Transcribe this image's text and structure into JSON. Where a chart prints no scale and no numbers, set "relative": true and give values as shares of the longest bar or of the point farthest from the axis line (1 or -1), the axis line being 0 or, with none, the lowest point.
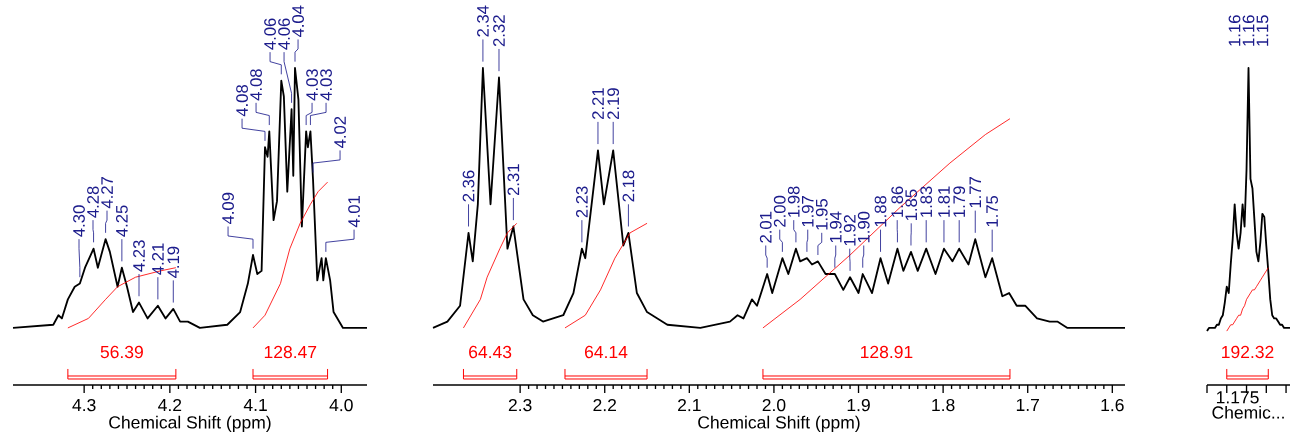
{
  "chart_data": [
    {
      "type": "line",
      "relative": true,
      "xlabel": "Chemical Shift (ppm)",
      "xlim": [
        4.383,
        3.97
      ],
      "xticks": [
        4.3,
        4.2,
        4.1,
        {
          "value": 4.0,
          "label": "4.0"
        }
      ],
      "series": [
        {
          "color": "#000000",
          "x": [
            4.383,
            4.336,
            4.33,
            4.326,
            4.319,
            4.311,
            4.305,
            4.299,
            4.289,
            4.284,
            4.275,
            4.27,
            4.261,
            4.256,
            4.25,
            4.243,
            4.236,
            4.226,
            4.214,
            4.205,
            4.196,
            4.188,
            4.179,
            4.165,
            4.133,
            4.118,
            4.109,
            4.103,
            4.098,
            4.093,
            4.089,
            4.086,
            4.084,
            4.079,
            4.075,
            4.07,
            4.067,
            4.063,
            4.058,
            4.056,
            4.054,
            4.05,
            4.046,
            4.041,
            4.039,
            4.036,
            4.033,
            4.028,
            4.023,
            4.021,
            4.018,
            4.013,
            4.009,
            3.998,
            3.97
          ],
          "values": [
            0.18,
            0.19,
            0.22,
            0.21,
            0.27,
            0.31,
            0.32,
            0.37,
            0.43,
            0.37,
            0.46,
            0.42,
            0.31,
            0.37,
            0.31,
            0.23,
            0.26,
            0.21,
            0.25,
            0.21,
            0.24,
            0.2,
            0.2,
            0.18,
            0.19,
            0.23,
            0.32,
            0.41,
            0.35,
            0.36,
            0.75,
            0.72,
            0.8,
            0.52,
            0.58,
            0.96,
            0.91,
            0.61,
            0.87,
            0.66,
            1.0,
            0.9,
            0.5,
            0.8,
            0.75,
            0.8,
            0.65,
            0.33,
            0.4,
            0.33,
            0.4,
            0.33,
            0.23,
            0.18,
            0.18
          ]
        },
        {
          "color": "#ff0000",
          "x": [
            4.319,
            4.295,
            4.275,
            4.261,
            4.24,
            4.211,
            4.193
          ],
          "values": [
            0.18,
            0.21,
            0.27,
            0.31,
            0.34,
            0.36,
            0.37
          ]
        },
        {
          "color": "#ff0000",
          "x": [
            4.103,
            4.089,
            4.071,
            4.06,
            4.048,
            4.036,
            4.027,
            4.016
          ],
          "values": [
            0.18,
            0.22,
            0.32,
            0.43,
            0.51,
            0.57,
            0.61,
            0.64
          ]
        }
      ],
      "annotations": [
        "56.39",
        "128.47",
        {
          "text": "4.30",
          "x": 4.305,
          "y": 0.32
        },
        {
          "text": "4.28",
          "x": 4.289,
          "y": 0.43
        },
        {
          "text": "4.27",
          "x": 4.275,
          "y": 0.46
        },
        {
          "text": "4.25",
          "x": 4.256,
          "y": 0.37
        },
        {
          "text": "4.23",
          "x": 4.236,
          "y": 0.26
        },
        {
          "text": "4.21",
          "x": 4.214,
          "y": 0.25
        },
        {
          "text": "4.19",
          "x": 4.196,
          "y": 0.24
        },
        {
          "text": "4.09",
          "x": 4.103,
          "y": 0.41
        },
        {
          "text": "4.08",
          "x": 4.089,
          "y": 0.75
        },
        {
          "text": "4.08",
          "x": 4.084,
          "y": 0.8
        },
        {
          "text": "4.06",
          "x": 4.07,
          "y": 0.96
        },
        {
          "text": "4.06",
          "x": 4.058,
          "y": 0.87
        },
        {
          "text": "4.04",
          "x": 4.054,
          "y": 1.0
        },
        {
          "text": "4.03",
          "x": 4.041,
          "y": 0.8
        },
        {
          "text": "4.03",
          "x": 4.036,
          "y": 0.8
        },
        {
          "text": "4.02",
          "x": 4.033,
          "y": 0.65
        },
        {
          "text": "4.01",
          "x": 4.018,
          "y": 0.4
        }
      ]
    },
    {
      "type": "line",
      "relative": true,
      "xlabel": "Chemical Shift (ppm)",
      "xlim": [
        2.403,
        1.585
      ],
      "xticks": [
        2.3,
        2.2,
        2.1,
        {
          "value": 2.0,
          "label": "2.0"
        },
        1.9,
        1.8,
        1.7,
        1.6
      ],
      "series": [
        {
          "color": "#000000",
          "x": [
            2.403,
            2.386,
            2.371,
            2.361,
            2.356,
            2.35,
            2.344,
            2.335,
            2.325,
            2.315,
            2.308,
            2.296,
            2.285,
            2.273,
            2.249,
            2.237,
            2.227,
            2.223,
            2.208,
            2.201,
            2.19,
            2.178,
            2.172,
            2.162,
            2.15,
            2.126,
            2.087,
            2.052,
            2.043,
            2.036,
            2.026,
            2.02,
            2.008,
            2.002,
            1.99,
            1.983,
            1.974,
            1.969,
            1.961,
            1.955,
            1.948,
            1.939,
            1.928,
            1.918,
            1.91,
            1.9,
            1.895,
            1.884,
            1.874,
            1.865,
            1.854,
            1.847,
            1.838,
            1.83,
            1.82,
            1.809,
            1.799,
            1.789,
            1.781,
            1.77,
            1.762,
            1.75,
            1.742,
            1.73,
            1.722,
            1.713,
            1.703,
            1.689,
            1.674,
            1.665,
            1.653,
            1.585
          ],
          "values": [
            0.18,
            0.2,
            0.25,
            0.48,
            0.39,
            0.57,
            1.0,
            0.57,
            0.97,
            0.43,
            0.5,
            0.27,
            0.22,
            0.2,
            0.22,
            0.29,
            0.43,
            0.4,
            0.74,
            0.57,
            0.74,
            0.44,
            0.48,
            0.29,
            0.23,
            0.19,
            0.18,
            0.2,
            0.22,
            0.21,
            0.27,
            0.25,
            0.35,
            0.29,
            0.4,
            0.35,
            0.43,
            0.39,
            0.4,
            0.38,
            0.39,
            0.35,
            0.35,
            0.3,
            0.34,
            0.29,
            0.35,
            0.29,
            0.4,
            0.32,
            0.43,
            0.36,
            0.42,
            0.36,
            0.43,
            0.35,
            0.43,
            0.39,
            0.43,
            0.38,
            0.46,
            0.34,
            0.4,
            0.28,
            0.29,
            0.25,
            0.25,
            0.21,
            0.2,
            0.2,
            0.18,
            0.18
          ]
        },
        {
          "color": "#ff0000",
          "x": [
            2.367,
            2.347,
            2.339,
            2.324,
            2.315,
            2.304
          ],
          "values": [
            0.18,
            0.27,
            0.34,
            0.43,
            0.48,
            0.51
          ]
        },
        {
          "color": "#ff0000",
          "x": [
            2.247,
            2.223,
            2.205,
            2.188,
            2.17,
            2.15
          ],
          "values": [
            0.18,
            0.22,
            0.3,
            0.4,
            0.48,
            0.51
          ]
        },
        {
          "color": "#ff0000",
          "x": [
            2.013,
            1.969,
            1.91,
            1.851,
            1.792,
            1.75,
            1.721
          ],
          "values": [
            0.18,
            0.27,
            0.41,
            0.56,
            0.7,
            0.79,
            0.84
          ]
        }
      ],
      "annotations": [
        "64.43",
        "64.14",
        "128.91",
        {
          "text": "2.36",
          "x": 2.361,
          "y": 0.48
        },
        {
          "text": "2.34",
          "x": 2.344,
          "y": 1.0
        },
        {
          "text": "2.32",
          "x": 2.325,
          "y": 0.97
        },
        {
          "text": "2.31",
          "x": 2.308,
          "y": 0.5
        },
        {
          "text": "2.23",
          "x": 2.227,
          "y": 0.43
        },
        {
          "text": "2.21",
          "x": 2.208,
          "y": 0.74
        },
        {
          "text": "2.19",
          "x": 2.19,
          "y": 0.74
        },
        {
          "text": "2.18",
          "x": 2.172,
          "y": 0.48
        },
        {
          "text": "2.01",
          "x": 2.008,
          "y": 0.35
        },
        {
          "text": "2.00",
          "x": 1.99,
          "y": 0.4
        },
        {
          "text": "1.98",
          "x": 1.974,
          "y": 0.43
        },
        {
          "text": "1.97",
          "x": 1.961,
          "y": 0.4
        },
        {
          "text": "1.95",
          "x": 1.948,
          "y": 0.39
        },
        {
          "text": "1.94",
          "x": 1.928,
          "y": 0.35
        },
        {
          "text": "1.92",
          "x": 1.91,
          "y": 0.34
        },
        {
          "text": "1.90",
          "x": 1.895,
          "y": 0.35
        },
        {
          "text": "1.88",
          "x": 1.874,
          "y": 0.4
        },
        {
          "text": "1.86",
          "x": 1.854,
          "y": 0.43
        },
        {
          "text": "1.85",
          "x": 1.838,
          "y": 0.42
        },
        {
          "text": "1.83",
          "x": 1.82,
          "y": 0.43
        },
        {
          "text": "1.81",
          "x": 1.799,
          "y": 0.43
        },
        {
          "text": "1.79",
          "x": 1.781,
          "y": 0.43
        },
        {
          "text": "1.77",
          "x": 1.762,
          "y": 0.46
        },
        {
          "text": "1.75",
          "x": 1.742,
          "y": 0.4
        }
      ]
    },
    {
      "type": "line",
      "relative": true,
      "xlabel": "Chemic...",
      "categories": [
        null,
        null,
        null,
        null,
        null,
        null,
        null,
        null,
        null,
        null,
        null,
        null,
        null,
        null,
        null,
        null,
        null,
        null,
        null,
        null,
        null,
        null,
        null,
        null,
        null,
        null,
        null,
        null,
        null,
        null,
        null,
        null,
        null,
        null,
        null,
        null,
        null,
        null,
        null,
        null,
        null,
        null,
        null
      ],
      "series": [
        {
          "color": "#000000",
          "values": [
            0.17,
            0.18,
            0.18,
            0.18,
            0.18,
            0.19,
            0.19,
            0.21,
            0.22,
            0.26,
            0.31,
            0.29,
            0.38,
            0.46,
            0.57,
            0.48,
            0.43,
            0.48,
            0.57,
            0.5,
            0.68,
            1.0,
            0.65,
            0.62,
            0.52,
            0.42,
            0.39,
            0.45,
            0.54,
            0.53,
            0.44,
            0.36,
            0.27,
            0.22,
            0.21,
            0.21,
            0.2,
            0.19,
            0.19,
            0.18,
            0.18,
            0.18,
            0.18
          ]
        },
        {
          "color": "#ff0000",
          "values": [
            null,
            null,
            null,
            null,
            null,
            null,
            null,
            null,
            null,
            null,
            0.17,
            0.18,
            0.19,
            0.19,
            0.2,
            0.21,
            0.22,
            0.22,
            0.24,
            0.25,
            0.27,
            0.28,
            0.29,
            0.3,
            0.3,
            0.31,
            0.32,
            0.33,
            0.34,
            0.35,
            0.36,
            0.37,
            null,
            null,
            null,
            null,
            null,
            null,
            null,
            null,
            null,
            null,
            null
          ]
        }
      ],
      "annotations": [
        "192.32",
        "1.16",
        "1.16",
        "1.15",
        "1.175"
      ]
    }
  ]
}
